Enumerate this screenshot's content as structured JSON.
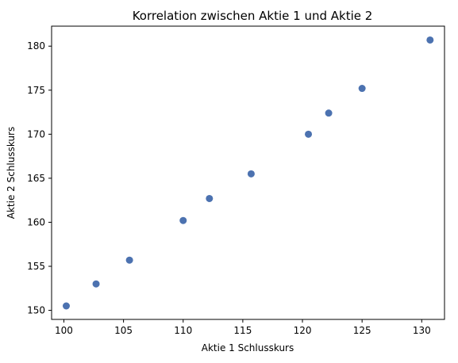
{
  "chart_data": {
    "type": "scatter",
    "title": "Korrelation zwischen Aktie 1 und Aktie 2",
    "xlabel": "Aktie 1 Schlusskurs",
    "ylabel": "Aktie 2 Schlusskurs",
    "xlim": [
      98.97,
      131.91
    ],
    "ylim": [
      148.97,
      182.27
    ],
    "xticks": [
      100,
      105,
      110,
      115,
      120,
      125,
      130
    ],
    "yticks": [
      150,
      155,
      160,
      165,
      170,
      175,
      180
    ],
    "grid": false,
    "series": [
      {
        "color": "#4c72b0",
        "points": [
          {
            "x": 100.2,
            "y": 150.5
          },
          {
            "x": 102.7,
            "y": 153.0
          },
          {
            "x": 105.5,
            "y": 155.7
          },
          {
            "x": 110.0,
            "y": 160.2
          },
          {
            "x": 112.2,
            "y": 162.7
          },
          {
            "x": 115.7,
            "y": 165.5
          },
          {
            "x": 120.5,
            "y": 170.0
          },
          {
            "x": 122.2,
            "y": 172.4
          },
          {
            "x": 125.0,
            "y": 175.2
          },
          {
            "x": 130.7,
            "y": 180.7
          }
        ]
      }
    ]
  }
}
